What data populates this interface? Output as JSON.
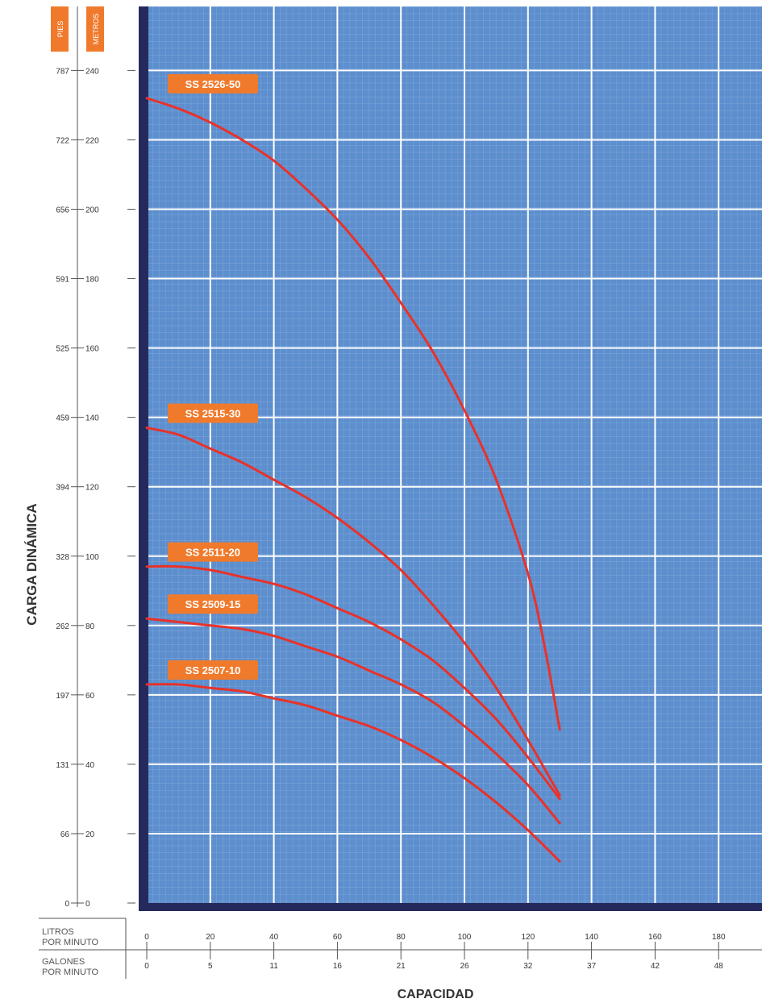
{
  "chart_data": {
    "type": "line",
    "title": "",
    "xlabel": "CAPACIDAD",
    "ylabel": "CARGA DINÁMICA",
    "y_unit_primary": "METROS",
    "y_unit_secondary": "PIES",
    "x_unit_primary": "LITROS POR MINUTO",
    "x_unit_secondary": "GALONES POR MINUTO",
    "xlim": [
      0,
      190
    ],
    "ylim": [
      0,
      250
    ],
    "grid": true,
    "x_ticks_lpm": [
      "0",
      "20",
      "40",
      "60",
      "80",
      "100",
      "120",
      "140",
      "160",
      "180"
    ],
    "x_ticks_gpm": [
      "0",
      "5",
      "11",
      "16",
      "21",
      "26",
      "32",
      "37",
      "42",
      "48"
    ],
    "y_ticks_metros": [
      "0",
      "20",
      "40",
      "60",
      "80",
      "100",
      "120",
      "140",
      "160",
      "180",
      "200",
      "220",
      "240"
    ],
    "y_ticks_pies": [
      "0",
      "66",
      "131",
      "197",
      "262",
      "328",
      "394",
      "459",
      "525",
      "591",
      "656",
      "722",
      "787"
    ],
    "series": [
      {
        "name": "SS 2526-50",
        "color": "#e8322a",
        "x": [
          0,
          10,
          20,
          30,
          40,
          50,
          60,
          70,
          80,
          90,
          100,
          110,
          120,
          125,
          130
        ],
        "y": [
          232,
          229,
          225,
          220,
          214,
          206,
          197,
          186,
          173,
          159,
          142,
          122,
          95,
          75,
          50
        ]
      },
      {
        "name": "SS 2515-30",
        "color": "#e8322a",
        "x": [
          0,
          10,
          20,
          30,
          40,
          50,
          60,
          70,
          80,
          90,
          100,
          110,
          120,
          130
        ],
        "y": [
          137,
          135,
          131,
          127,
          122,
          117,
          111,
          104,
          96,
          86,
          75,
          62,
          47,
          31
        ]
      },
      {
        "name": "SS 2511-20",
        "color": "#e8322a",
        "x": [
          0,
          10,
          20,
          30,
          40,
          50,
          60,
          70,
          80,
          90,
          100,
          110,
          120,
          130
        ],
        "y": [
          97,
          97,
          96,
          94,
          92,
          89,
          85,
          81,
          76,
          70,
          62,
          53,
          42,
          30
        ]
      },
      {
        "name": "SS 2509-15",
        "color": "#e8322a",
        "x": [
          0,
          10,
          20,
          30,
          40,
          50,
          60,
          70,
          80,
          90,
          100,
          110,
          120,
          130
        ],
        "y": [
          82,
          81,
          80,
          79,
          77,
          74,
          71,
          67,
          63,
          58,
          51,
          43,
          34,
          23
        ]
      },
      {
        "name": "SS 2507-10",
        "color": "#e8322a",
        "x": [
          0,
          10,
          20,
          30,
          40,
          50,
          60,
          70,
          80,
          90,
          100,
          110,
          120,
          130
        ],
        "y": [
          63,
          63,
          62,
          61,
          59,
          57,
          54,
          51,
          47,
          42,
          36,
          29,
          21,
          12
        ]
      }
    ]
  },
  "colors": {
    "plot_bg": "#5d8ecd",
    "grid_minor": "#88b0e0",
    "grid_major": "#ffffff",
    "frame": "#252a5c",
    "label_bg": "#f07a2c"
  }
}
